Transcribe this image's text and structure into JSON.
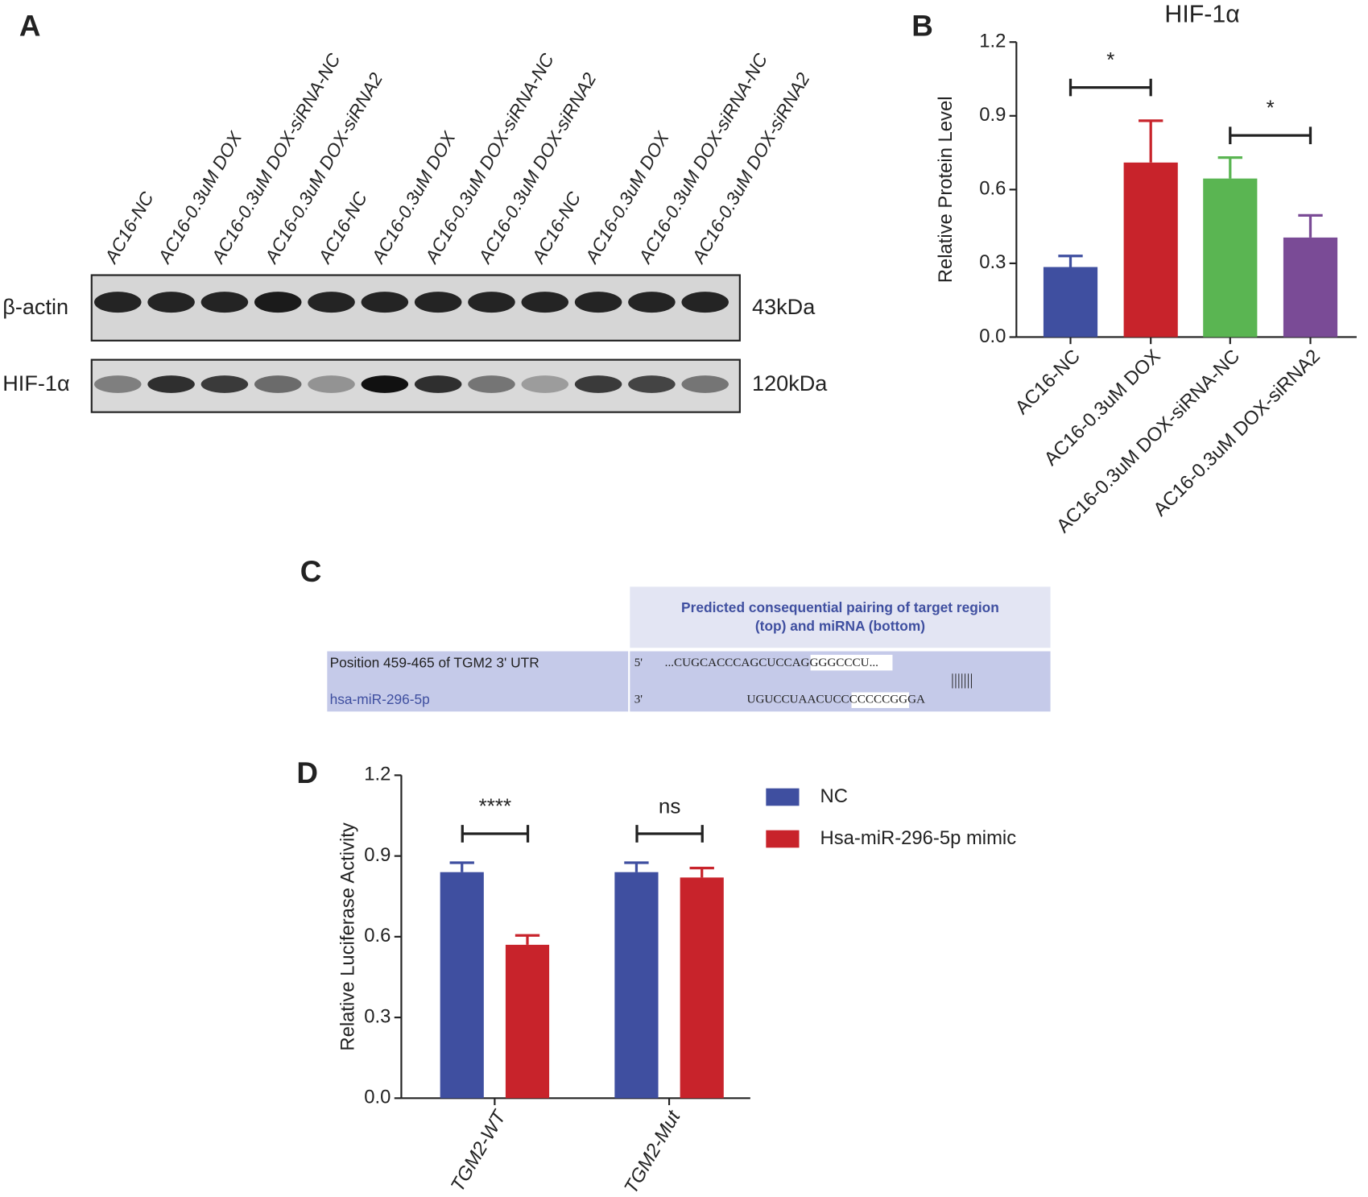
{
  "blot": {
    "label": "A",
    "lanes": [
      "AC16-NC",
      "AC16-0.3uM DOX",
      "AC16-0.3uM DOX-siRNA-NC",
      "AC16-0.3uM DOX-siRNA2",
      "AC16-NC",
      "AC16-0.3uM DOX",
      "AC16-0.3uM DOX-siRNA-NC",
      "AC16-0.3uM DOX-siRNA2",
      "AC16-NC",
      "AC16-0.3uM DOX",
      "AC16-0.3uM DOX-siRNA-NC",
      "AC16-0.3uM DOX-siRNA2"
    ],
    "rows": [
      {
        "name": "β-actin",
        "size": "43kDa"
      },
      {
        "name": "HIF-1α",
        "size": "120kDa"
      }
    ]
  },
  "pairing": {
    "label": "C",
    "header": [
      "Predicted consequential pairing of target region",
      "(top) and miRNA (bottom)"
    ],
    "rows": [
      {
        "name": "Position 459-465 of TGM2 3' UTR",
        "end": "5'",
        "sequence": "...CUGCACCCAGCUCCAGGGGCCCU..."
      },
      {
        "name": "hsa-miR-296-5p",
        "end": "3'",
        "sequence": "UGUCCUAACUCCCCCCCGGGA"
      }
    ],
    "match": "|||||||"
  },
  "chart_data": [
    {
      "type": "bar",
      "label": "B",
      "title": "HIF-1α",
      "y_label": "Relative Protein Level",
      "categories": [
        "AC16-NC",
        "AC16-0.3uM DOX",
        "AC16-0.3uM DOX-siRNA-NC",
        "AC16-0.3uM DOX-siRNA2"
      ],
      "series": [
        {
          "colors": [
            "#3f4fa0",
            "#c8232b",
            "#5ab552",
            "#7a4b96"
          ],
          "values": [
            0.285,
            0.71,
            0.645,
            0.405
          ],
          "errors": [
            0.045,
            0.17,
            0.085,
            0.09
          ]
        }
      ],
      "ylim": [
        0,
        1.2
      ],
      "yticks": [
        {
          "value": 0,
          "label": "0.0"
        },
        0.3,
        0.6,
        0.9,
        1.2
      ],
      "annotations": [
        "*",
        "*"
      ]
    },
    {
      "type": "bar",
      "label": "D",
      "y_label": "Relative Luciferase Activity",
      "categories": [
        "TGM2-WT",
        "TGM2-Mut"
      ],
      "series": [
        {
          "name": "NC",
          "color": "#3f4fa0",
          "values": [
            0.84,
            0.84
          ],
          "errors": [
            0.035,
            0.035
          ]
        },
        {
          "name": "Hsa-miR-296-5p mimic",
          "color": "#c8232b",
          "values": [
            0.57,
            0.82
          ],
          "errors": [
            0.035,
            0.035
          ]
        }
      ],
      "ylim": [
        0,
        1.2
      ],
      "yticks": [
        {
          "value": 0,
          "label": "0.0"
        },
        0.3,
        0.6,
        0.9,
        1.2
      ],
      "annotations": [
        "****",
        "ns"
      ]
    }
  ]
}
